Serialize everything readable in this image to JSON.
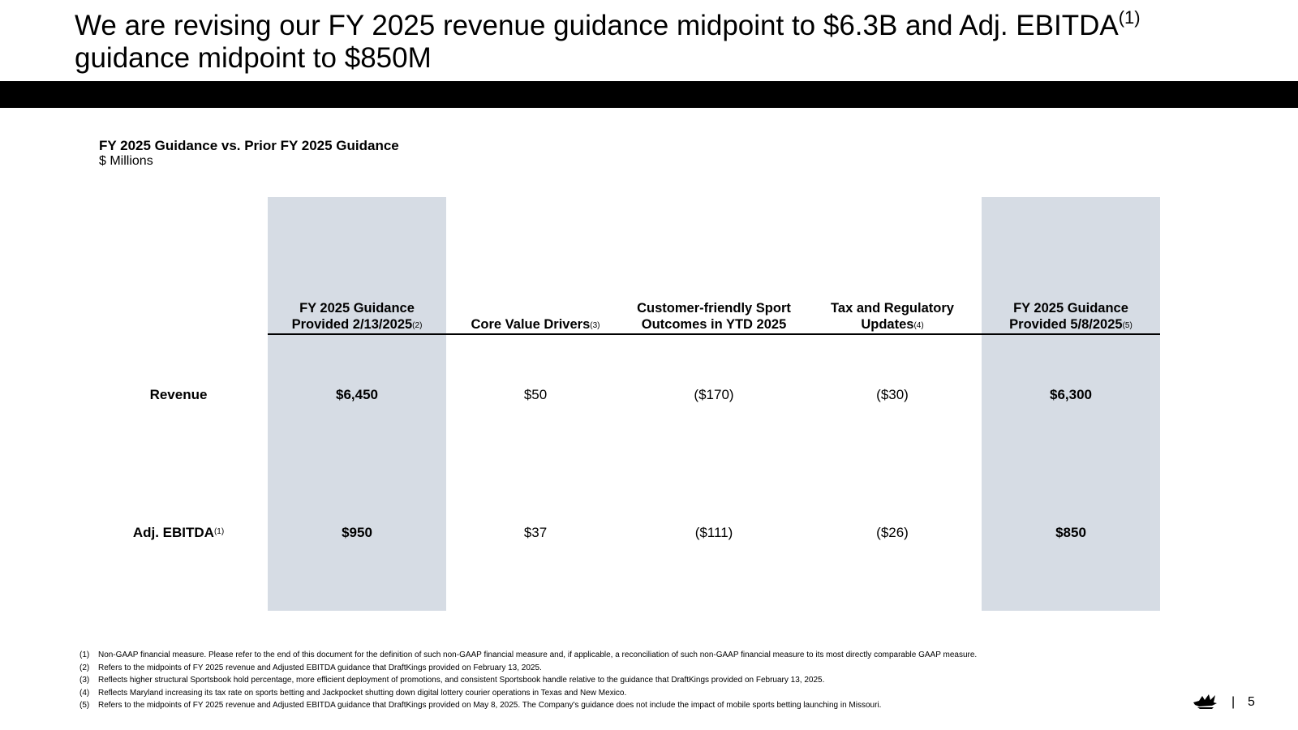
{
  "title": {
    "line1": "We are revising our FY 2025 revenue guidance midpoint to $6.3B and Adj. EBITDA",
    "line1_sup": "(1)",
    "line2": "guidance midpoint to $850M"
  },
  "table": {
    "subtitle": "FY 2025 Guidance vs. Prior FY 2025 Guidance",
    "units": "$ Millions",
    "columns": [
      {
        "line1": "FY 2025  Guidance",
        "line2": "Provided 2/13/2025",
        "sup": "(2)"
      },
      {
        "line1": "",
        "line2": "Core Value Drivers",
        "sup": "(3)"
      },
      {
        "line1": "Customer-friendly Sport",
        "line2": "Outcomes in YTD 2025",
        "sup": ""
      },
      {
        "line1": "Tax and Regulatory",
        "line2": "Updates",
        "sup": "(4)"
      },
      {
        "line1": "FY 2025 Guidance",
        "line2": "Provided 5/8/2025",
        "sup": "(5)"
      }
    ],
    "rows": [
      {
        "label": "Revenue",
        "label_sup": "",
        "values": [
          "$6,450",
          "$50",
          "($170)",
          "($30)",
          "$6,300"
        ]
      },
      {
        "label": "Adj. EBITDA",
        "label_sup": "(1)",
        "values": [
          "$950",
          "$37",
          "($111)",
          "($26)",
          "$850"
        ]
      }
    ]
  },
  "footnotes": [
    {
      "num": "(1)",
      "text": "Non-GAAP financial measure. Please refer to the end of this document for the definition of such non-GAAP financial measure and, if applicable, a reconciliation of such non-GAAP financial measure to its most directly comparable GAAP measure."
    },
    {
      "num": "(2)",
      "text": "Refers to the midpoints of FY 2025 revenue and Adjusted EBITDA guidance that DraftKings provided on February 13, 2025."
    },
    {
      "num": "(3)",
      "text": "Reflects higher structural Sportsbook hold percentage, more efficient deployment of promotions, and consistent Sportsbook handle relative to the guidance that DraftKings provided on February 13, 2025."
    },
    {
      "num": "(4)",
      "text": "Reflects Maryland increasing its tax rate on sports betting and Jackpocket shutting down digital lottery courier operations in Texas and New Mexico."
    },
    {
      "num": "(5)",
      "text": "Refers to the midpoints of FY 2025 revenue and Adjusted EBITDA guidance that DraftKings provided on May 8, 2025. The Company's guidance does not include the impact of mobile sports betting launching in Missouri."
    }
  ],
  "footer": {
    "logo_icon": "crown-logo-icon",
    "separator": "|",
    "page_number": "5"
  },
  "colors": {
    "shade": "#d6dce4",
    "bar": "#000000"
  }
}
